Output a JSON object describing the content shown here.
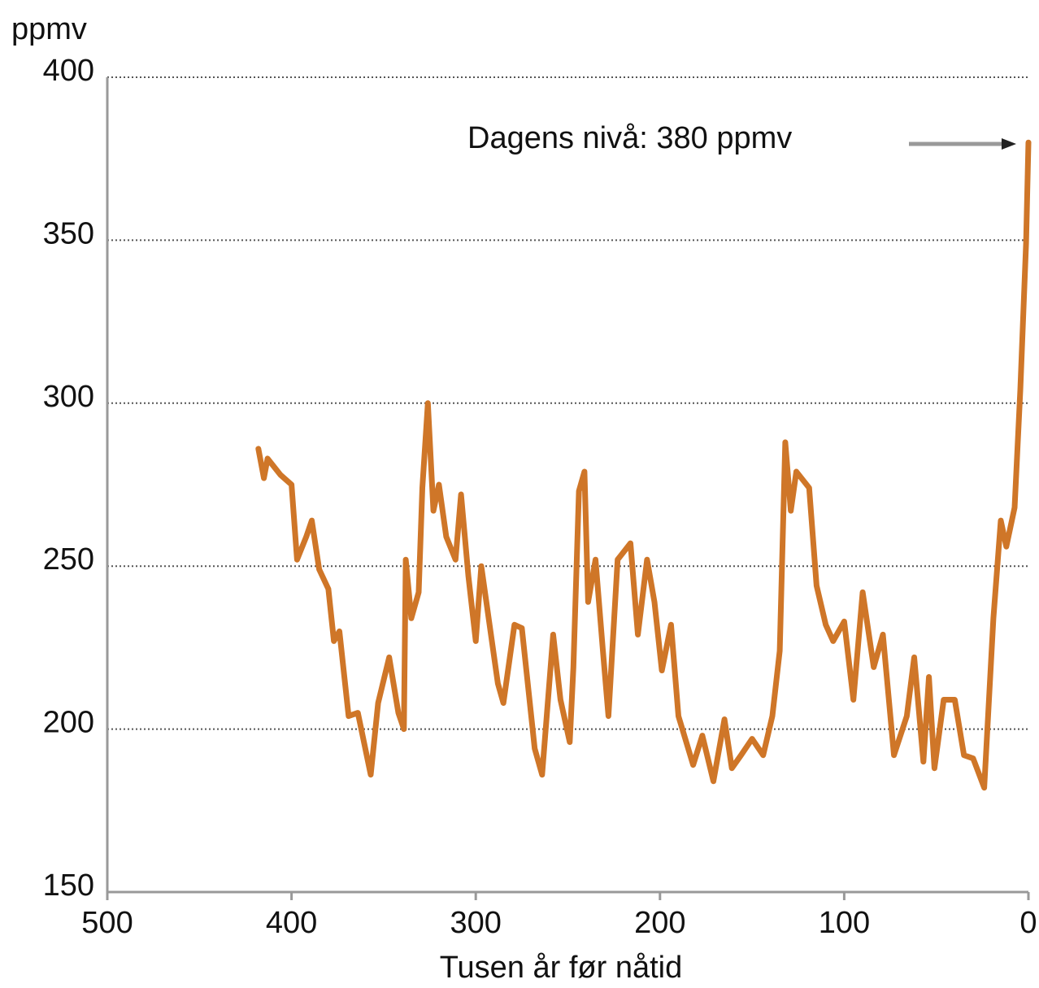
{
  "chart_data": {
    "type": "line",
    "y_label": "ppmv",
    "x_label": "Tusen år før nåtid",
    "annotation": "Dagens nivå: 380 ppmv",
    "x": [
      418,
      415,
      413,
      406,
      400,
      397,
      392,
      389,
      385,
      380,
      377,
      374,
      369,
      364,
      357,
      353,
      347,
      342,
      339,
      338,
      335,
      331,
      329,
      326,
      323,
      320,
      316,
      311,
      308,
      304,
      300,
      297,
      294,
      288,
      285,
      279,
      275,
      268,
      264,
      258,
      254,
      249,
      247,
      244,
      241,
      239,
      235,
      231,
      228,
      223,
      216,
      212,
      207,
      203,
      199,
      194,
      190,
      182,
      177,
      171,
      165,
      161,
      156,
      150,
      144,
      139,
      135,
      132,
      129,
      126,
      119,
      115,
      110,
      106,
      100,
      95,
      90,
      84,
      79,
      73,
      66,
      62,
      57,
      54,
      51,
      46,
      40,
      35,
      30,
      24,
      19,
      15,
      12,
      7.5,
      4.4,
      1.3,
      0
    ],
    "values": [
      286,
      277,
      283,
      278,
      275,
      252,
      259,
      264,
      249,
      243,
      227,
      230,
      204,
      205,
      186,
      208,
      222,
      205,
      200,
      252,
      234,
      242,
      274,
      300,
      267,
      275,
      259,
      252,
      272,
      247,
      227,
      250,
      238,
      214,
      208,
      232,
      231,
      194,
      186,
      229,
      209,
      196,
      219,
      273,
      279,
      239,
      252,
      224,
      204,
      252,
      257,
      229,
      252,
      239,
      218,
      232,
      204,
      189,
      198,
      184,
      203,
      188,
      192,
      197,
      192,
      204,
      224,
      288,
      267,
      279,
      274,
      244,
      232,
      227,
      233,
      209,
      242,
      219,
      229,
      192,
      204,
      222,
      190,
      216,
      188,
      209,
      209,
      192,
      191,
      182,
      234,
      264,
      256,
      268,
      304,
      349,
      380
    ],
    "color": "#cf7628",
    "xlim": [
      500,
      0
    ],
    "xticks": [
      500,
      400,
      300,
      200,
      100,
      0
    ],
    "ylim": [
      150,
      400
    ],
    "yticks": [
      150,
      200,
      250,
      300,
      350,
      400
    ],
    "grid": true
  }
}
